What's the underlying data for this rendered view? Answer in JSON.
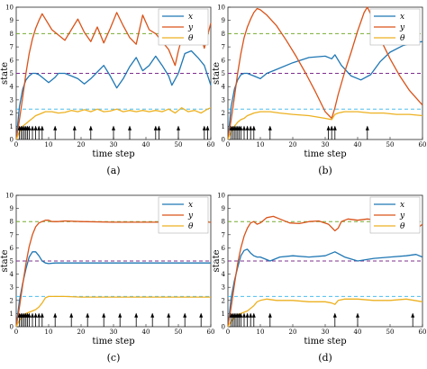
{
  "chart_data": [
    {
      "type": "line",
      "caption": "(a)",
      "xlabel": "time step",
      "ylabel": "state",
      "xlim": [
        0,
        60
      ],
      "ylim": [
        0,
        10
      ],
      "xticks": [
        0,
        10,
        20,
        30,
        40,
        50,
        60
      ],
      "yticks": [
        0,
        1,
        2,
        3,
        4,
        5,
        6,
        7,
        8,
        9,
        10
      ],
      "grid": false,
      "legend_position": "top-right",
      "series": [
        {
          "name": "x",
          "color": "#1f77b4",
          "style": "solid",
          "x": [
            0,
            1,
            2,
            3,
            4,
            5,
            6,
            7,
            8,
            10,
            12,
            13,
            15,
            17,
            19,
            21,
            23,
            25,
            27,
            29,
            31,
            33,
            35,
            37,
            39,
            41,
            43,
            45,
            47,
            48,
            50,
            52,
            54,
            56,
            58,
            60
          ],
          "y": [
            0,
            2.5,
            3.8,
            4.5,
            4.8,
            5.0,
            5.0,
            4.9,
            4.7,
            4.3,
            4.7,
            5.0,
            5.0,
            4.8,
            4.6,
            4.2,
            4.6,
            5.1,
            5.6,
            4.8,
            3.9,
            4.6,
            5.5,
            6.2,
            5.2,
            5.6,
            6.3,
            5.6,
            4.8,
            4.1,
            5.0,
            6.5,
            6.7,
            6.2,
            5.6,
            4.1
          ]
        },
        {
          "name": "y",
          "color": "#d95319",
          "style": "solid",
          "x": [
            0,
            1,
            2,
            3,
            4,
            5,
            6,
            7,
            8,
            9,
            11,
            13,
            15,
            17,
            19,
            21,
            23,
            25,
            27,
            29,
            31,
            33,
            35,
            37,
            39,
            41,
            43,
            45,
            47,
            49,
            50,
            52,
            54,
            56,
            58,
            60
          ],
          "y": [
            0,
            1.5,
            3.2,
            5.0,
            6.5,
            7.6,
            8.4,
            9.0,
            9.5,
            9.1,
            8.3,
            7.9,
            7.5,
            8.3,
            9.1,
            8.1,
            7.4,
            8.5,
            7.3,
            8.4,
            9.6,
            8.6,
            7.7,
            7.2,
            9.4,
            8.3,
            8.0,
            7.4,
            6.8,
            5.6,
            6.7,
            8.5,
            9.6,
            8.6,
            6.9,
            8.8
          ]
        },
        {
          "name": "θ",
          "color": "#edb120",
          "style": "solid",
          "x": [
            0,
            1,
            2,
            3,
            4,
            5,
            6,
            7,
            8,
            9,
            11,
            13,
            15,
            17,
            19,
            21,
            23,
            25,
            27,
            29,
            31,
            33,
            35,
            37,
            39,
            41,
            43,
            45,
            47,
            49,
            51,
            53,
            55,
            57,
            59,
            60
          ],
          "y": [
            0,
            0.6,
            1.0,
            1.2,
            1.4,
            1.6,
            1.8,
            1.9,
            2.0,
            2.1,
            2.1,
            2.0,
            2.05,
            2.2,
            2.1,
            2.25,
            2.1,
            2.3,
            2.1,
            2.15,
            2.3,
            2.1,
            2.2,
            2.1,
            2.2,
            2.1,
            2.2,
            2.1,
            2.3,
            2.0,
            2.4,
            2.1,
            2.2,
            2.0,
            2.3,
            2.4
          ]
        },
        {
          "name": "",
          "color": "#7e2f8e",
          "style": "dashed",
          "x": [
            0,
            60
          ],
          "y": [
            5,
            5
          ]
        },
        {
          "name": "",
          "color": "#77ac30",
          "style": "dashed",
          "x": [
            0,
            60
          ],
          "y": [
            8,
            8
          ]
        },
        {
          "name": "",
          "color": "#4dbeee",
          "style": "dashed",
          "x": [
            0,
            60
          ],
          "y": [
            2.3,
            2.3
          ]
        }
      ],
      "event_steps": [
        1,
        1.5,
        2,
        2.5,
        3,
        3.5,
        4,
        5,
        6,
        7,
        8,
        12,
        18,
        23,
        30,
        35,
        43,
        44,
        50,
        58,
        59
      ]
    },
    {
      "type": "line",
      "caption": "(b)",
      "xlabel": "time step",
      "ylabel": "state",
      "xlim": [
        0,
        60
      ],
      "ylim": [
        0,
        10
      ],
      "xticks": [
        0,
        10,
        20,
        30,
        40,
        50,
        60
      ],
      "yticks": [
        0,
        1,
        2,
        3,
        4,
        5,
        6,
        7,
        8,
        9,
        10
      ],
      "grid": false,
      "legend_position": "top-right",
      "series": [
        {
          "name": "x",
          "color": "#1f77b4",
          "style": "solid",
          "x": [
            0,
            1,
            2,
            3,
            4,
            5,
            6,
            7,
            8,
            10,
            12,
            15,
            20,
            25,
            30,
            32,
            33,
            35,
            38,
            41,
            44,
            47,
            50,
            54,
            57,
            60
          ],
          "y": [
            0,
            2.5,
            3.8,
            4.5,
            4.9,
            5.0,
            5.0,
            4.9,
            4.8,
            4.6,
            5.0,
            5.3,
            5.8,
            6.2,
            6.3,
            6.1,
            6.4,
            5.6,
            4.8,
            4.5,
            4.9,
            5.9,
            6.6,
            7.1,
            7.3,
            7.4
          ]
        },
        {
          "name": "y",
          "color": "#d95319",
          "style": "solid",
          "x": [
            0,
            1,
            2,
            3,
            4,
            5,
            6,
            7,
            8,
            9,
            10,
            12,
            15,
            18,
            21,
            24,
            27,
            30,
            32,
            33,
            34,
            36,
            38,
            40,
            42,
            43,
            44,
            47,
            50,
            53,
            56,
            60
          ],
          "y": [
            0,
            1.5,
            3.2,
            5.0,
            6.5,
            7.7,
            8.5,
            9.1,
            9.6,
            9.9,
            9.8,
            9.4,
            8.6,
            7.5,
            6.3,
            5.0,
            3.6,
            2.1,
            1.6,
            2.4,
            3.4,
            5.1,
            6.6,
            8.2,
            9.6,
            10.0,
            9.5,
            7.6,
            6.1,
            4.8,
            3.7,
            2.6
          ]
        },
        {
          "name": "θ",
          "color": "#edb120",
          "style": "solid",
          "x": [
            0,
            1,
            2,
            3,
            4,
            5,
            6,
            7,
            8,
            10,
            13,
            16,
            20,
            25,
            30,
            32,
            33,
            34,
            36,
            40,
            44,
            48,
            52,
            56,
            60
          ],
          "y": [
            0,
            0.6,
            1.0,
            1.3,
            1.5,
            1.6,
            1.8,
            1.9,
            2.0,
            2.1,
            2.1,
            2.0,
            1.9,
            1.8,
            1.6,
            1.5,
            1.9,
            2.0,
            2.1,
            2.1,
            2.0,
            2.0,
            1.9,
            1.9,
            1.8
          ]
        },
        {
          "name": "",
          "color": "#7e2f8e",
          "style": "dashed",
          "x": [
            0,
            60
          ],
          "y": [
            5,
            5
          ]
        },
        {
          "name": "",
          "color": "#77ac30",
          "style": "dashed",
          "x": [
            0,
            60
          ],
          "y": [
            8,
            8
          ]
        },
        {
          "name": "",
          "color": "#4dbeee",
          "style": "dashed",
          "x": [
            0,
            60
          ],
          "y": [
            2.3,
            2.3
          ]
        }
      ],
      "event_steps": [
        1,
        1.5,
        2,
        2.5,
        3,
        3.5,
        4,
        5,
        6,
        7,
        8,
        13,
        31,
        32,
        33,
        43
      ]
    },
    {
      "type": "line",
      "caption": "(c)",
      "xlabel": "time step",
      "ylabel": "state",
      "xlim": [
        0,
        60
      ],
      "ylim": [
        0,
        10
      ],
      "xticks": [
        0,
        10,
        20,
        30,
        40,
        50,
        60
      ],
      "yticks": [
        0,
        1,
        2,
        3,
        4,
        5,
        6,
        7,
        8,
        9,
        10
      ],
      "grid": false,
      "legend_position": "top-right",
      "series": [
        {
          "name": "x",
          "color": "#1f77b4",
          "style": "solid",
          "x": [
            0,
            1,
            2,
            3,
            4,
            5,
            6,
            7,
            8,
            9,
            10,
            12,
            15,
            20,
            30,
            40,
            50,
            60
          ],
          "y": [
            0,
            2.0,
            3.3,
            4.4,
            5.3,
            5.7,
            5.7,
            5.4,
            5.0,
            4.85,
            4.8,
            4.85,
            4.85,
            4.85,
            4.85,
            4.85,
            4.85,
            4.85
          ]
        },
        {
          "name": "y",
          "color": "#d95319",
          "style": "solid",
          "x": [
            0,
            1,
            2,
            3,
            4,
            5,
            6,
            7,
            8,
            9,
            10,
            11,
            13,
            15,
            20,
            30,
            40,
            50,
            60
          ],
          "y": [
            0,
            1.5,
            3.2,
            4.8,
            6.1,
            7.0,
            7.6,
            7.9,
            8.0,
            8.1,
            8.1,
            8.0,
            8.0,
            8.05,
            8.0,
            7.95,
            7.95,
            7.95,
            7.95
          ]
        },
        {
          "name": "θ",
          "color": "#edb120",
          "style": "solid",
          "x": [
            0,
            1,
            2,
            3,
            4,
            5,
            6,
            7,
            8,
            9,
            10,
            12,
            15,
            20,
            30,
            40,
            50,
            60
          ],
          "y": [
            0,
            0.5,
            0.8,
            1.0,
            1.1,
            1.2,
            1.3,
            1.5,
            1.8,
            2.2,
            2.3,
            2.3,
            2.3,
            2.25,
            2.25,
            2.25,
            2.25,
            2.25
          ]
        },
        {
          "name": "",
          "color": "#7e2f8e",
          "style": "dashed",
          "x": [
            0,
            60
          ],
          "y": [
            5,
            5
          ]
        },
        {
          "name": "",
          "color": "#77ac30",
          "style": "dashed",
          "x": [
            0,
            60
          ],
          "y": [
            8,
            8
          ]
        },
        {
          "name": "",
          "color": "#4dbeee",
          "style": "dashed",
          "x": [
            0,
            60
          ],
          "y": [
            2.3,
            2.3
          ]
        }
      ],
      "event_steps": [
        1,
        1.5,
        2,
        2.5,
        3,
        3.5,
        4,
        5,
        6,
        7,
        8,
        12,
        17,
        22,
        27,
        32,
        37,
        42,
        47,
        52,
        57
      ]
    },
    {
      "type": "line",
      "caption": "(d)",
      "xlabel": "time step",
      "ylabel": "state",
      "xlim": [
        0,
        60
      ],
      "ylim": [
        0,
        10
      ],
      "xticks": [
        0,
        10,
        20,
        30,
        40,
        50,
        60
      ],
      "yticks": [
        0,
        1,
        2,
        3,
        4,
        5,
        6,
        7,
        8,
        9,
        10
      ],
      "grid": false,
      "legend_position": "top-right",
      "series": [
        {
          "name": "x",
          "color": "#1f77b4",
          "style": "solid",
          "x": [
            0,
            1,
            2,
            3,
            4,
            5,
            6,
            7,
            8,
            9,
            10,
            13,
            16,
            20,
            25,
            30,
            33,
            36,
            40,
            45,
            50,
            55,
            58,
            60
          ],
          "y": [
            0,
            2.2,
            3.5,
            4.5,
            5.4,
            5.8,
            5.9,
            5.6,
            5.4,
            5.3,
            5.3,
            5.0,
            5.3,
            5.4,
            5.3,
            5.4,
            5.7,
            5.3,
            5.0,
            5.2,
            5.3,
            5.4,
            5.5,
            5.3
          ]
        },
        {
          "name": "y",
          "color": "#d95319",
          "style": "solid",
          "x": [
            0,
            1,
            2,
            3,
            4,
            5,
            6,
            7,
            8,
            9,
            10,
            12,
            14,
            16,
            19,
            22,
            25,
            28,
            31,
            33,
            34,
            35,
            37,
            40,
            43,
            46,
            49,
            52,
            55,
            57,
            58,
            60
          ],
          "y": [
            0,
            1.5,
            3.2,
            4.8,
            6.0,
            6.9,
            7.5,
            7.9,
            8.0,
            7.8,
            7.9,
            8.3,
            8.4,
            8.2,
            7.9,
            7.85,
            8.0,
            8.05,
            7.8,
            7.3,
            7.5,
            8.0,
            8.2,
            8.1,
            8.2,
            8.1,
            8.2,
            8.3,
            8.2,
            7.9,
            7.4,
            7.8
          ]
        },
        {
          "name": "θ",
          "color": "#edb120",
          "style": "solid",
          "x": [
            0,
            1,
            2,
            3,
            4,
            5,
            6,
            7,
            8,
            9,
            10,
            12,
            15,
            20,
            25,
            30,
            32,
            33,
            34,
            36,
            40,
            45,
            50,
            55,
            60
          ],
          "y": [
            0,
            0.4,
            0.7,
            0.9,
            1.0,
            1.1,
            1.2,
            1.4,
            1.6,
            1.9,
            2.0,
            2.1,
            2.0,
            2.0,
            1.9,
            1.9,
            1.8,
            1.7,
            2.0,
            2.1,
            2.1,
            2.0,
            2.0,
            2.1,
            1.9
          ]
        },
        {
          "name": "",
          "color": "#7e2f8e",
          "style": "dashed",
          "x": [
            0,
            60
          ],
          "y": [
            5,
            5
          ]
        },
        {
          "name": "",
          "color": "#77ac30",
          "style": "dashed",
          "x": [
            0,
            60
          ],
          "y": [
            8,
            8
          ]
        },
        {
          "name": "",
          "color": "#4dbeee",
          "style": "dashed",
          "x": [
            0,
            60
          ],
          "y": [
            2.3,
            2.3
          ]
        }
      ],
      "event_steps": [
        1,
        1.5,
        2,
        2.5,
        3,
        3.5,
        4,
        5,
        6,
        7,
        8,
        13,
        33,
        40,
        57
      ]
    }
  ]
}
